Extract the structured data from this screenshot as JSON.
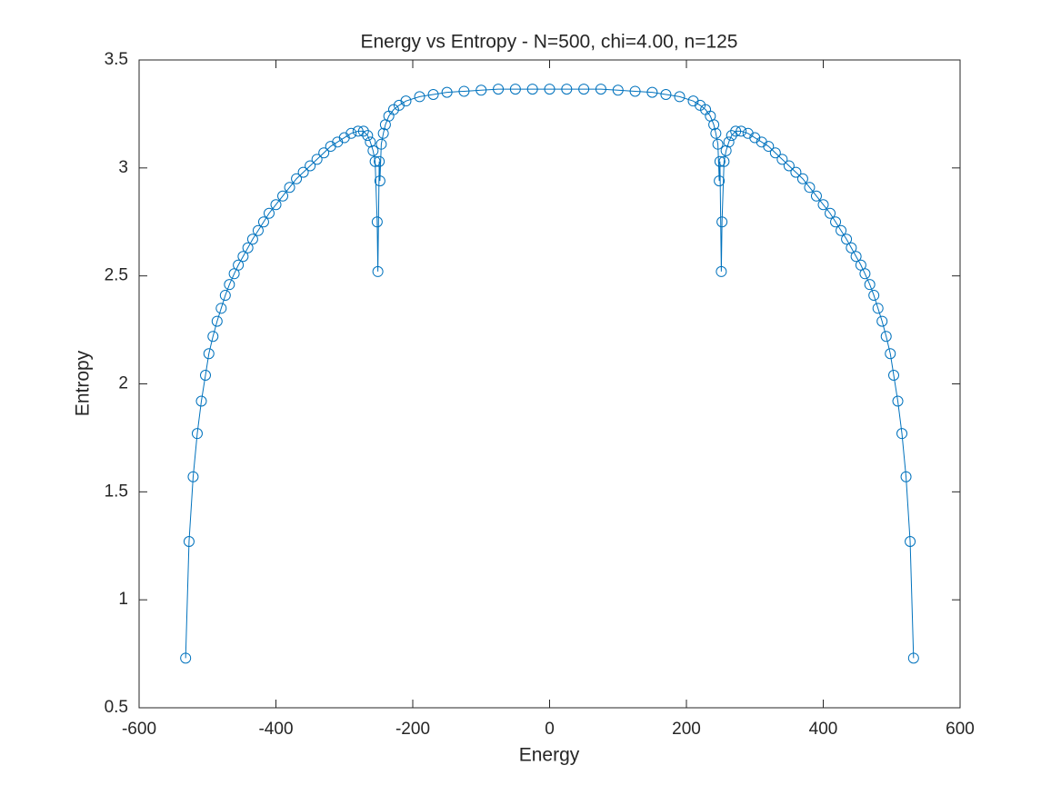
{
  "chart_data": {
    "type": "line",
    "marker": "circle",
    "title": "Energy vs Entropy - N=500, chi=4.00, n=125",
    "x_label": "Energy",
    "y_label": "Entropy",
    "color": "#0072bd",
    "grid": false,
    "xlim": [
      -600,
      600
    ],
    "xticks": [
      -600,
      -400,
      -200,
      0,
      200,
      400,
      600
    ],
    "ylim": [
      0.5,
      3.5
    ],
    "yticks": [
      0.5,
      1,
      1.5,
      2,
      2.5,
      3,
      3.5
    ],
    "x": [
      -532,
      -527,
      -521,
      -515,
      -509,
      -503,
      -498,
      -492,
      -486,
      -480,
      -474,
      -468,
      -461,
      -455,
      -448,
      -441,
      -434,
      -426,
      -418,
      -410,
      -400,
      -390,
      -380,
      -370,
      -360,
      -350,
      -340,
      -330,
      -320,
      -310,
      -300,
      -290,
      -280,
      -272,
      -266,
      -262,
      -258,
      -255,
      -252,
      -251,
      -249,
      -248,
      -246,
      -243,
      -240,
      -235,
      -228,
      -220,
      -210,
      -190,
      -170,
      -150,
      -125,
      -100,
      -75,
      -50,
      -25,
      0,
      25,
      50,
      75,
      100,
      125,
      150,
      170,
      190,
      210,
      220,
      228,
      235,
      240,
      243,
      246,
      248,
      249,
      251,
      252,
      255,
      258,
      262,
      266,
      272,
      280,
      290,
      300,
      310,
      320,
      330,
      340,
      350,
      360,
      370,
      380,
      390,
      400,
      410,
      418,
      426,
      434,
      441,
      448,
      455,
      461,
      468,
      474,
      480,
      486,
      492,
      498,
      503,
      509,
      515,
      521,
      527,
      532
    ],
    "values": [
      0.73,
      1.27,
      1.57,
      1.77,
      1.92,
      2.04,
      2.14,
      2.22,
      2.29,
      2.35,
      2.41,
      2.46,
      2.51,
      2.55,
      2.59,
      2.63,
      2.67,
      2.71,
      2.75,
      2.79,
      2.83,
      2.87,
      2.91,
      2.95,
      2.98,
      3.01,
      3.04,
      3.07,
      3.1,
      3.12,
      3.14,
      3.16,
      3.17,
      3.17,
      3.15,
      3.12,
      3.08,
      3.03,
      2.75,
      2.52,
      3.03,
      2.94,
      3.11,
      3.16,
      3.2,
      3.24,
      3.27,
      3.29,
      3.31,
      3.33,
      3.34,
      3.35,
      3.355,
      3.36,
      3.365,
      3.365,
      3.365,
      3.365,
      3.365,
      3.365,
      3.365,
      3.36,
      3.355,
      3.35,
      3.34,
      3.33,
      3.31,
      3.29,
      3.27,
      3.24,
      3.2,
      3.16,
      3.11,
      2.94,
      3.03,
      2.52,
      2.75,
      3.03,
      3.08,
      3.12,
      3.15,
      3.17,
      3.17,
      3.16,
      3.14,
      3.12,
      3.1,
      3.07,
      3.04,
      3.01,
      2.98,
      2.95,
      2.91,
      2.87,
      2.83,
      2.79,
      2.75,
      2.71,
      2.67,
      2.63,
      2.59,
      2.55,
      2.51,
      2.46,
      2.41,
      2.35,
      2.29,
      2.22,
      2.14,
      2.04,
      1.92,
      1.77,
      1.57,
      1.27,
      0.73
    ]
  }
}
